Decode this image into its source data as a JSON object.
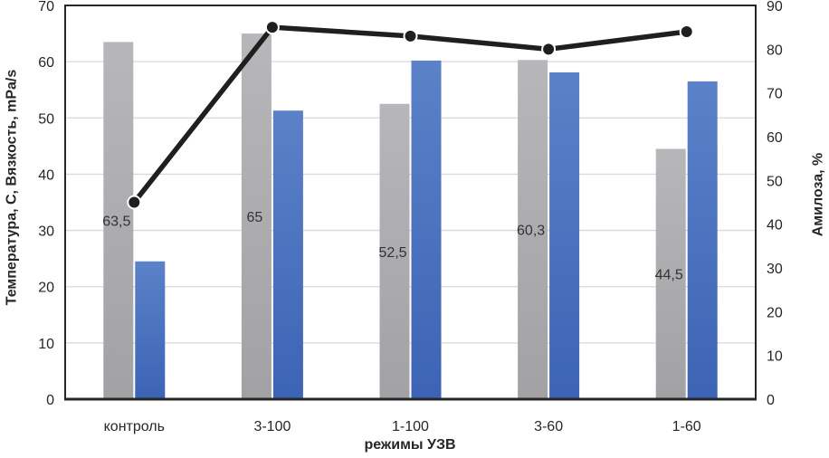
{
  "chart_data": {
    "type": "combo",
    "categories": [
      "контроль",
      "3-100",
      "1-100",
      "3-60",
      "1-60"
    ],
    "series": [
      {
        "name": "gray-bars",
        "type": "bar",
        "axis": "left",
        "values": [
          63.5,
          65,
          52.5,
          60.3,
          44.5
        ],
        "labels": [
          "63,5",
          "65",
          "52,5",
          "60,3",
          "44,5"
        ],
        "color_top": "#b7b7ba",
        "color_bottom": "#a2a2a5"
      },
      {
        "name": "blue-bars",
        "type": "bar",
        "axis": "left",
        "values": [
          24.5,
          51.3,
          60.2,
          58.1,
          56.5
        ],
        "labels": [],
        "color_top": "#5b81c8",
        "color_bottom": "#3c64b4"
      },
      {
        "name": "black-line",
        "type": "line",
        "axis": "right",
        "values": [
          45,
          85,
          83,
          80,
          84
        ],
        "color": "#1f1f1f"
      }
    ],
    "left_axis": {
      "title": "Температура, С, Вязкость, mPa/s",
      "min": 0,
      "max": 70,
      "step": 10
    },
    "right_axis": {
      "title": "Амилоза, %",
      "min": 0,
      "max": 90,
      "step": 10
    },
    "x_axis": {
      "title": "режимы УЗВ"
    },
    "grid": true,
    "legend": "none",
    "colors": {
      "grid": "#d9d9d9",
      "frame": "#262626",
      "tick_text": "#262626",
      "bar_label_text": "#333333",
      "marker_halo": "#ffffff"
    }
  }
}
